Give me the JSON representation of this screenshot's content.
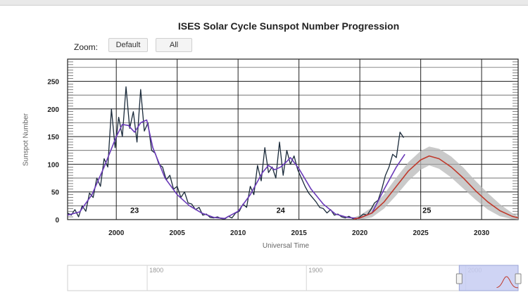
{
  "title": "ISES Solar Cycle Sunspot Number Progression",
  "zoom": {
    "label": "Zoom:",
    "buttons": [
      "Default",
      "All"
    ]
  },
  "colors": {
    "observed": "#1a2a3a",
    "smoothed": "#6a3ab8",
    "predicted": "#c0392b",
    "band": "#b8b8b8",
    "navigator_selection": "#c7ccf2"
  },
  "chart_data": {
    "type": "line",
    "title": "ISES Solar Cycle Sunspot Number Progression",
    "xlabel": "Universal Time",
    "ylabel": "Sunspot Number",
    "xlim": [
      1996,
      2033
    ],
    "ylim": [
      0,
      290
    ],
    "xticks": [
      2000,
      2005,
      2010,
      2015,
      2020,
      2025,
      2030
    ],
    "yticks": [
      0,
      50,
      100,
      150,
      200,
      250
    ],
    "grid": true,
    "cycle_labels": [
      {
        "text": "23",
        "x": 2001.5,
        "y": 12
      },
      {
        "text": "24",
        "x": 2013.5,
        "y": 12
      },
      {
        "text": "25",
        "x": 2025.5,
        "y": 12
      }
    ],
    "series": [
      {
        "role": "observed-monthly",
        "x": [
          1996.0,
          1996.3,
          1996.6,
          1996.9,
          1997.2,
          1997.5,
          1997.8,
          1998.1,
          1998.4,
          1998.7,
          1999.0,
          1999.3,
          1999.6,
          1999.9,
          2000.2,
          2000.5,
          2000.8,
          2001.1,
          2001.4,
          2001.7,
          2002.0,
          2002.3,
          2002.6,
          2002.9,
          2003.2,
          2003.5,
          2003.8,
          2004.1,
          2004.4,
          2004.7,
          2005.0,
          2005.3,
          2005.6,
          2005.9,
          2006.2,
          2006.5,
          2006.8,
          2007.1,
          2007.4,
          2007.7,
          2008.0,
          2008.3,
          2008.6,
          2008.9,
          2009.2,
          2009.5,
          2009.8,
          2010.1,
          2010.4,
          2010.7,
          2011.0,
          2011.3,
          2011.6,
          2011.9,
          2012.2,
          2012.5,
          2012.8,
          2013.1,
          2013.4,
          2013.7,
          2014.0,
          2014.3,
          2014.6,
          2014.9,
          2015.2,
          2015.5,
          2015.8,
          2016.1,
          2016.4,
          2016.7,
          2017.0,
          2017.3,
          2017.6,
          2017.9,
          2018.2,
          2018.5,
          2018.8,
          2019.1,
          2019.4,
          2019.7,
          2020.0,
          2020.3,
          2020.6,
          2020.9,
          2021.2,
          2021.5,
          2021.8,
          2022.1,
          2022.4,
          2022.7,
          2023.0,
          2023.3,
          2023.6
        ],
        "y": [
          12,
          8,
          18,
          5,
          25,
          15,
          48,
          40,
          75,
          60,
          110,
          95,
          200,
          130,
          185,
          150,
          240,
          165,
          195,
          140,
          235,
          160,
          175,
          125,
          120,
          100,
          95,
          72,
          80,
          55,
          60,
          40,
          50,
          30,
          28,
          18,
          22,
          8,
          10,
          4,
          3,
          5,
          2,
          1,
          6,
          3,
          12,
          15,
          28,
          22,
          60,
          45,
          98,
          70,
          130,
          85,
          95,
          75,
          140,
          80,
          125,
          100,
          115,
          90,
          75,
          60,
          48,
          40,
          32,
          22,
          20,
          12,
          18,
          8,
          10,
          5,
          3,
          6,
          2,
          1,
          5,
          10,
          8,
          18,
          30,
          35,
          55,
          80,
          95,
          118,
          112,
          158,
          148
        ]
      },
      {
        "role": "observed-smoothed",
        "x": [
          1996.0,
          1997.0,
          1998.0,
          1999.0,
          2000.0,
          2000.5,
          2001.0,
          2001.5,
          2002.0,
          2002.5,
          2003.0,
          2004.0,
          2005.0,
          2006.0,
          2007.0,
          2008.0,
          2008.9,
          2010.0,
          2011.0,
          2012.0,
          2012.5,
          2013.0,
          2013.5,
          2014.0,
          2014.3,
          2015.0,
          2016.0,
          2017.0,
          2018.0,
          2019.0,
          2019.9,
          2021.0,
          2022.0,
          2023.0,
          2023.7
        ],
        "y": [
          8,
          14,
          45,
          95,
          150,
          172,
          170,
          158,
          175,
          180,
          130,
          75,
          45,
          25,
          12,
          4,
          2,
          15,
          45,
          85,
          98,
          90,
          95,
          105,
          112,
          92,
          55,
          28,
          10,
          4,
          2,
          12,
          55,
          95,
          118
        ]
      },
      {
        "role": "predicted",
        "x": [
          2019.5,
          2020.0,
          2021.0,
          2022.0,
          2023.0,
          2024.0,
          2025.0,
          2025.7,
          2026.5,
          2027.5,
          2028.5,
          2029.5,
          2030.5,
          2031.5,
          2032.5,
          2033.0
        ],
        "y": [
          1,
          3,
          12,
          32,
          60,
          88,
          108,
          115,
          110,
          95,
          75,
          52,
          32,
          16,
          6,
          3
        ]
      }
    ],
    "prediction_band": {
      "x": [
        2019.5,
        2020.0,
        2021.0,
        2022.0,
        2023.0,
        2024.0,
        2025.0,
        2025.7,
        2026.5,
        2027.5,
        2028.5,
        2029.5,
        2030.5,
        2031.5,
        2032.5,
        2033.0
      ],
      "upper": [
        4,
        8,
        22,
        46,
        76,
        104,
        124,
        132,
        128,
        114,
        94,
        70,
        48,
        28,
        12,
        6
      ],
      "lower": [
        0,
        0,
        4,
        20,
        44,
        70,
        90,
        98,
        92,
        76,
        56,
        36,
        18,
        6,
        1,
        0
      ]
    }
  },
  "navigator": {
    "labels": [
      "1800",
      "1900",
      "2000"
    ],
    "label_years": [
      1800,
      1900,
      2000
    ],
    "xlim": [
      1750,
      2033
    ],
    "selection": [
      1996,
      2033
    ]
  }
}
